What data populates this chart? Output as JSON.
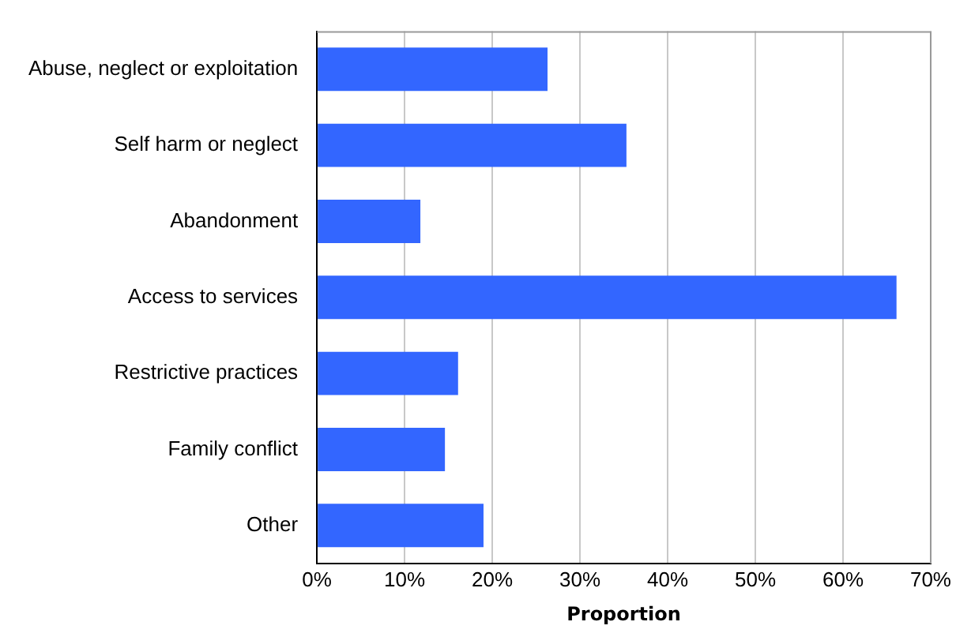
{
  "chart_data": {
    "type": "bar",
    "orientation": "horizontal",
    "xlabel": "Proportion",
    "categories": [
      "Abuse, neglect or exploitation",
      "Self harm or neglect",
      "Abandonment",
      "Access to services",
      "Restrictive practices",
      "Family conflict",
      "Other"
    ],
    "values": [
      26.3,
      35.3,
      11.8,
      66.1,
      16.1,
      14.6,
      19.0
    ],
    "color": "#3366ff",
    "xlim": [
      0,
      70
    ],
    "xticks": [
      {
        "value": 0,
        "label": "0%"
      },
      {
        "value": 10,
        "label": "10%"
      },
      {
        "value": 20,
        "label": "20%"
      },
      {
        "value": 30,
        "label": "30%"
      },
      {
        "value": 40,
        "label": "40%"
      },
      {
        "value": 50,
        "label": "50%"
      },
      {
        "value": 60,
        "label": "60%"
      },
      {
        "value": 70,
        "label": "70%"
      }
    ],
    "grid": "x",
    "legend": false
  }
}
